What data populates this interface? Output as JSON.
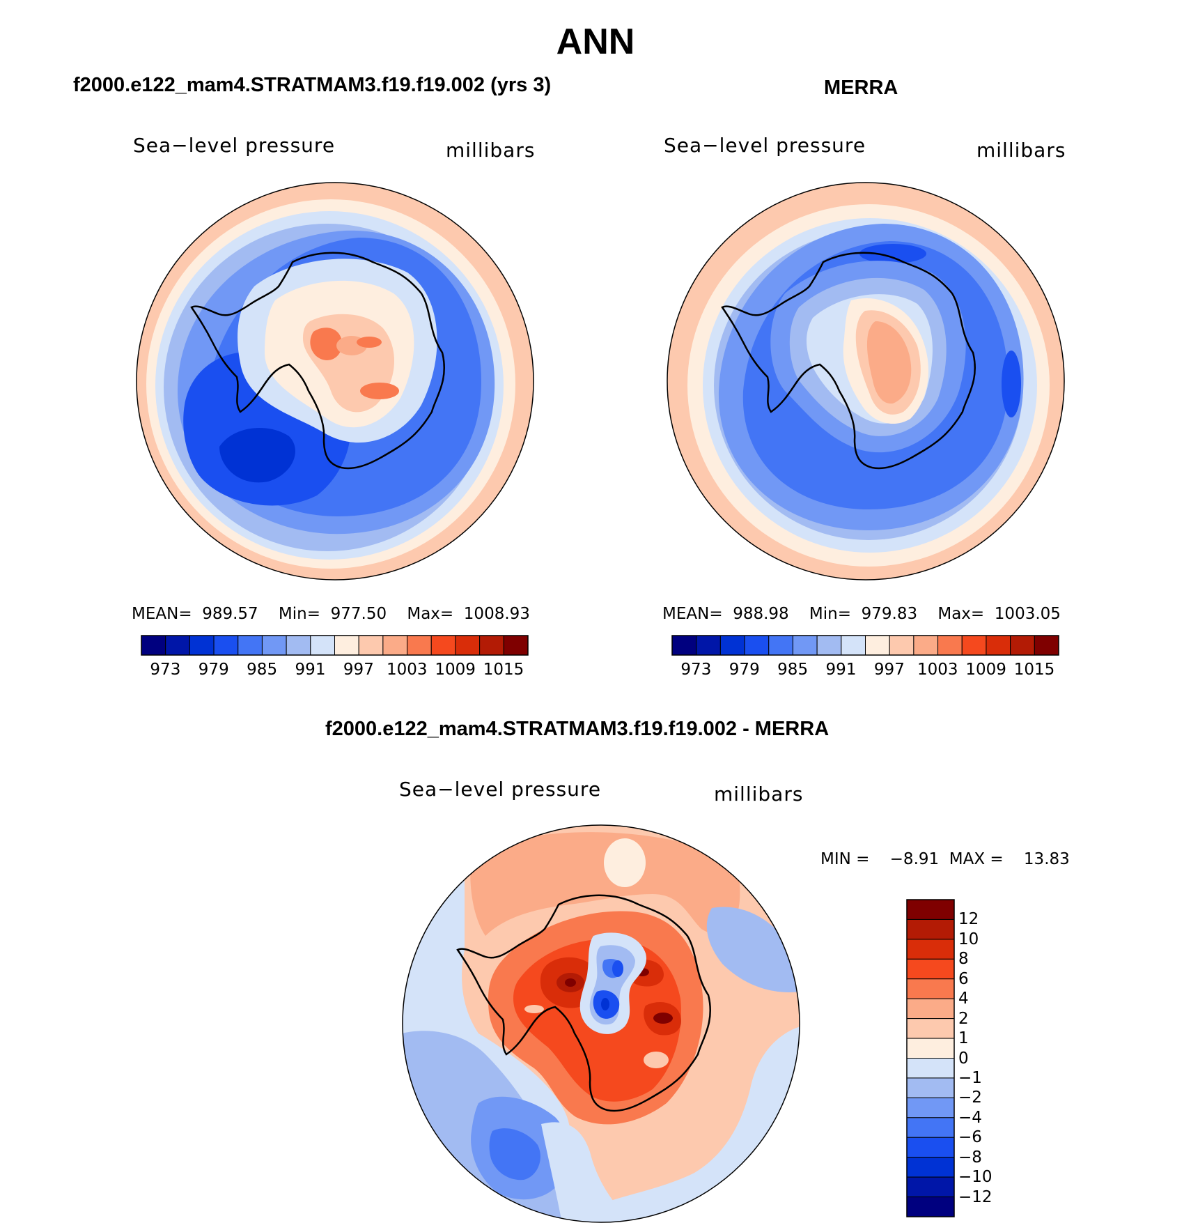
{
  "figure": {
    "title": "ANN"
  },
  "colors": {
    "abs_scale": [
      "#00007f",
      "#0016a8",
      "#0032d4",
      "#1a4ff0",
      "#4375f5",
      "#7198f5",
      "#a2bbf2",
      "#d4e3f9",
      "#feeedf",
      "#fdc9ae",
      "#fbab88",
      "#f9794e",
      "#f5491e",
      "#d92d09",
      "#b31b05",
      "#7f0000"
    ],
    "diff_scale": [
      "#00007f",
      "#0016a8",
      "#0032d4",
      "#1a4ff0",
      "#4375f5",
      "#7198f5",
      "#a2bbf2",
      "#d4e3f9",
      "#feeedf",
      "#fdc9ae",
      "#fbab88",
      "#f9794e",
      "#f5491e",
      "#d92d09",
      "#b31b05",
      "#7f0000"
    ]
  },
  "panels": {
    "model": {
      "subtitle": "f2000.e122_mam4.STRATMAM3.f19.f19.002 (yrs 3)",
      "variable": "Sea−level pressure",
      "units": "millibars",
      "stats": "MEAN=  989.57    Min=  977.50    Max=  1008.93",
      "colorbar_ticks": [
        "973",
        "979",
        "985",
        "991",
        "997",
        "1003",
        "1009",
        "1015"
      ]
    },
    "obs": {
      "subtitle": "MERRA",
      "variable": "Sea−level pressure",
      "units": "millibars",
      "stats": "MEAN=  988.98    Min=  979.83    Max=  1003.05",
      "colorbar_ticks": [
        "973",
        "979",
        "985",
        "991",
        "997",
        "1003",
        "1009",
        "1015"
      ]
    },
    "diff": {
      "subtitle": "f2000.e122_mam4.STRATMAM3.f19.f19.002 - MERRA",
      "variable": "Sea−level pressure",
      "units": "millibars",
      "stats": "MIN =    −8.91  MAX =    13.83",
      "colorbar_ticks": [
        "12",
        "10",
        "8",
        "6",
        "4",
        "2",
        "1",
        "0",
        "−1",
        "−2",
        "−4",
        "−6",
        "−8",
        "−10",
        "−12"
      ]
    }
  }
}
